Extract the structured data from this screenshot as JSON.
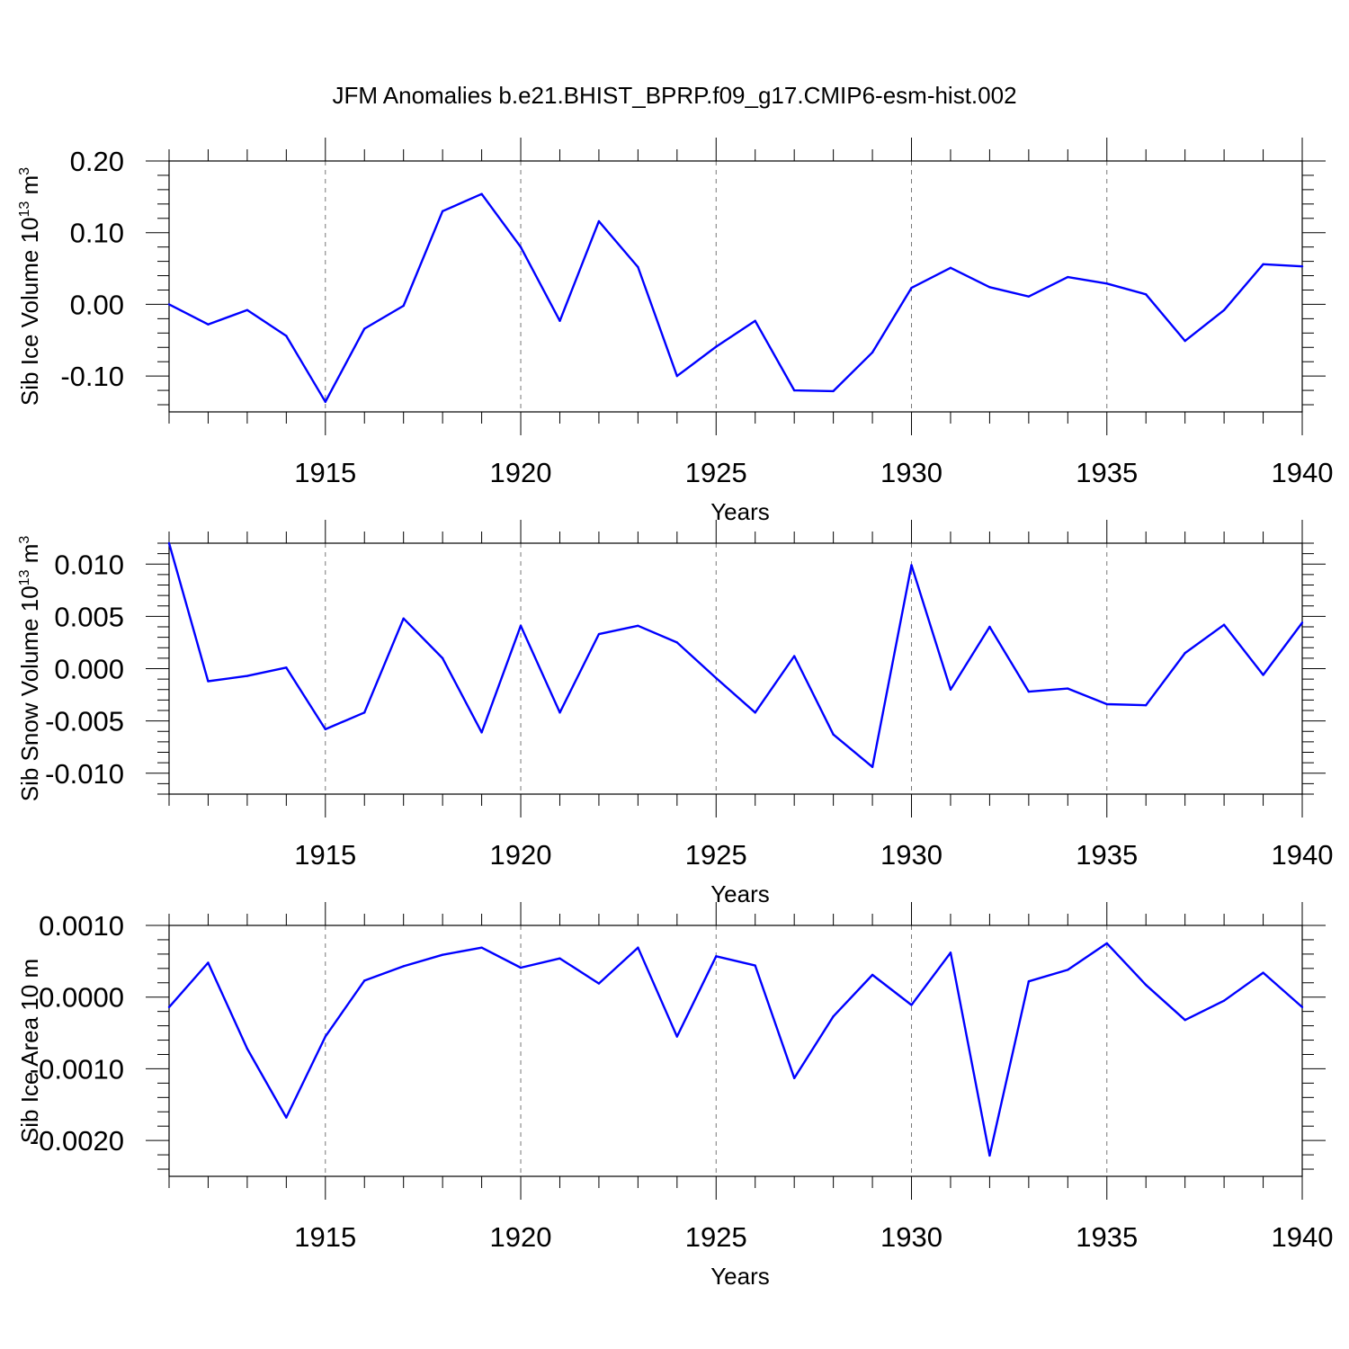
{
  "title": "JFM Anomalies b.e21.BHIST_BPRP.f09_g17.CMIP6-esm-hist.002",
  "line_color": "#0000ff",
  "chart_data": [
    {
      "type": "line",
      "ylabel": "Sib Ice Volume 10",
      "ylabel_sup": "13",
      "ylabel_unit": " m",
      "ylabel_unit_sup": "3",
      "xlabel": "Years",
      "xlim": [
        1911,
        1940
      ],
      "ylim": [
        -0.15,
        0.2
      ],
      "yticks": [
        -0.1,
        0.0,
        0.1,
        0.2
      ],
      "ytick_labels": [
        "-0.10",
        "0.00",
        "0.10",
        "0.20"
      ],
      "xticks": [
        1915,
        1920,
        1925,
        1930,
        1935,
        1940
      ],
      "xtick_labels": [
        "1915",
        "1920",
        "1925",
        "1930",
        "1935",
        "1940"
      ],
      "grid": "vertical dashed at labeled years",
      "series": [
        {
          "x": [
            1911,
            1912,
            1913,
            1914,
            1915,
            1916,
            1917,
            1918,
            1919,
            1920,
            1921,
            1922,
            1923,
            1924,
            1925,
            1926,
            1927,
            1928,
            1929,
            1930,
            1931,
            1932,
            1933,
            1934,
            1935,
            1936,
            1937,
            1938,
            1939,
            1940
          ],
          "values": [
            0.0,
            -0.028,
            -0.008,
            -0.044,
            -0.136,
            -0.034,
            -0.002,
            0.13,
            0.154,
            0.08,
            -0.023,
            0.116,
            0.052,
            -0.1,
            -0.059,
            -0.023,
            -0.12,
            -0.121,
            -0.067,
            0.023,
            0.051,
            0.024,
            0.011,
            0.038,
            0.029,
            0.014,
            -0.051,
            -0.008,
            0.056,
            0.053
          ]
        }
      ]
    },
    {
      "type": "line",
      "ylabel": "Sib Snow Volume 10",
      "ylabel_sup": "13",
      "ylabel_unit": " m",
      "ylabel_unit_sup": "3",
      "xlabel": "Years",
      "xlim": [
        1911,
        1940
      ],
      "ylim": [
        -0.012,
        0.012
      ],
      "yticks": [
        -0.01,
        -0.005,
        0.0,
        0.005,
        0.01
      ],
      "ytick_labels": [
        "-0.010",
        "-0.005",
        "0.000",
        "0.005",
        "0.010"
      ],
      "xticks": [
        1915,
        1920,
        1925,
        1930,
        1935,
        1940
      ],
      "xtick_labels": [
        "1915",
        "1920",
        "1925",
        "1930",
        "1935",
        "1940"
      ],
      "grid": "vertical dashed at labeled years",
      "series": [
        {
          "x": [
            1911,
            1912,
            1913,
            1914,
            1915,
            1916,
            1917,
            1918,
            1919,
            1920,
            1921,
            1922,
            1923,
            1924,
            1925,
            1926,
            1927,
            1928,
            1929,
            1930,
            1931,
            1932,
            1933,
            1934,
            1935,
            1936,
            1937,
            1938,
            1939,
            1940
          ],
          "values": [
            0.012,
            -0.0012,
            -0.0007,
            0.0001,
            -0.0058,
            -0.0042,
            0.0048,
            0.001,
            -0.0061,
            0.0041,
            -0.0042,
            0.0033,
            0.0041,
            0.0025,
            -0.0009,
            -0.0042,
            0.0012,
            -0.0063,
            -0.0094,
            0.0099,
            -0.002,
            0.004,
            -0.0022,
            -0.0019,
            -0.0034,
            -0.0035,
            0.0015,
            0.0042,
            -0.0006,
            0.0044
          ]
        }
      ]
    },
    {
      "type": "line",
      "ylabel": "Sib Ice Area 10",
      "ylabel_sup": "",
      "ylabel_unit": " m",
      "ylabel_unit_sup": "",
      "xlabel": "Years",
      "xlim": [
        1911,
        1940
      ],
      "ylim": [
        -0.0025,
        0.001
      ],
      "yticks": [
        -0.002,
        -0.001,
        0.0,
        0.001
      ],
      "ytick_labels": [
        "-0.0020",
        "-0.0010",
        "0.0000",
        "0.0010"
      ],
      "xticks": [
        1915,
        1920,
        1925,
        1930,
        1935,
        1940
      ],
      "xtick_labels": [
        "1915",
        "1920",
        "1925",
        "1930",
        "1935",
        "1940"
      ],
      "grid": "vertical dashed at labeled years",
      "series": [
        {
          "x": [
            1911,
            1912,
            1913,
            1914,
            1915,
            1916,
            1917,
            1918,
            1919,
            1920,
            1921,
            1922,
            1923,
            1924,
            1925,
            1926,
            1927,
            1928,
            1929,
            1930,
            1931,
            1932,
            1933,
            1934,
            1935,
            1936,
            1937,
            1938,
            1939,
            1940
          ],
          "values": [
            -0.00014,
            0.00048,
            -0.00072,
            -0.00168,
            -0.00055,
            0.00023,
            0.00043,
            0.00059,
            0.00069,
            0.00041,
            0.00054,
            0.00019,
            0.00069,
            -0.00055,
            0.00057,
            0.00044,
            -0.00113,
            -0.00027,
            0.00031,
            -0.00011,
            0.00062,
            -0.00221,
            0.00022,
            0.00038,
            0.00075,
            0.00017,
            -0.00032,
            -5e-05,
            0.00034,
            -0.00014
          ]
        }
      ]
    }
  ]
}
